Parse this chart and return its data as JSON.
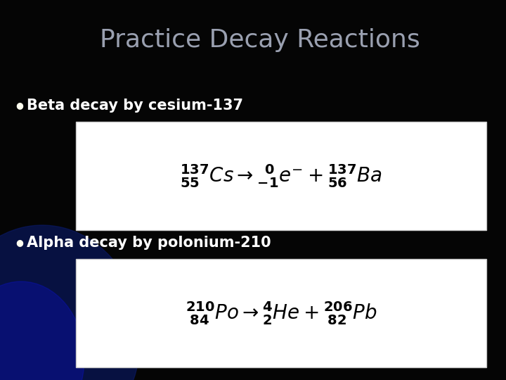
{
  "title": "Practice Decay Reactions",
  "title_color": "#9aa0b0",
  "title_fontsize": 26,
  "background_color": "#050505",
  "bullet_color": "#fffff0",
  "bullet1_text": "Beta decay by cesium-137",
  "bullet2_text": "Alpha decay by polonium-210",
  "bullet_fontsize": 15,
  "bullet_text_color": "#ffffff",
  "equation1": "$\\mathbf{^{137}_{55}}\\mathit{Cs}\\rightarrow\\mathbf{^{\\;\\;0}_{-1}}\\mathit{e}^{-}+\\mathbf{^{137}_{56}}\\mathit{Ba}$",
  "equation2": "$\\mathbf{^{210}_{\\;84}}\\mathit{Po}\\rightarrow\\mathbf{^{4}_{2}}\\mathit{He}+\\mathbf{^{206}_{\\;82}}\\mathit{Pb}$",
  "eq_fontsize": 20,
  "eq_box_color": "#ffffff",
  "eq_text_color": "#000000"
}
